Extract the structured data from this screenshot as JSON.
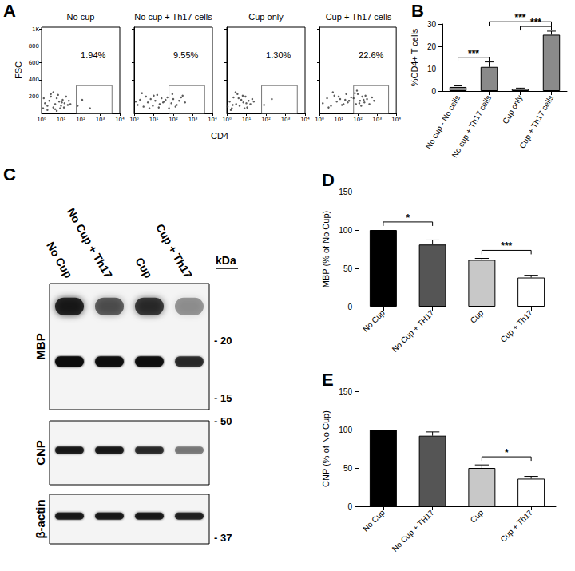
{
  "chart_data": [
    {
      "type": "scatter",
      "panel_label": "A",
      "title": "No cup",
      "log": "x",
      "color": "#333333",
      "xlabel": "CD4",
      "ylabel": "FSC",
      "tick_labels": true,
      "xlim": [
        1,
        10000
      ],
      "xticks": [
        {
          "value": 1,
          "label": "10⁰"
        },
        {
          "value": 10,
          "label": "10¹"
        },
        {
          "value": 100,
          "label": "10²"
        },
        {
          "value": 1000,
          "label": "10³"
        },
        {
          "value": 10000,
          "label": "10⁴"
        }
      ],
      "ylim": [
        0,
        1024
      ],
      "yticks": [
        200,
        400,
        600,
        800,
        {
          "value": 1000,
          "label": "1K"
        }
      ],
      "gate": {
        "x": [
          60,
          4000
        ],
        "y": [
          0,
          330
        ]
      },
      "annotations": [
        "1.94%"
      ],
      "x": [
        1.2,
        1.5,
        2,
        2.5,
        3,
        4,
        5,
        6,
        8,
        10,
        12,
        15,
        18,
        22,
        2,
        3,
        5,
        7,
        9,
        1.3,
        4,
        6,
        11,
        14,
        25,
        30,
        70,
        120,
        300
      ],
      "values": [
        60,
        120,
        90,
        150,
        200,
        70,
        110,
        180,
        140,
        90,
        160,
        120,
        200,
        100,
        40,
        230,
        50,
        220,
        60,
        180,
        250,
        30,
        130,
        70,
        150,
        110,
        90,
        160,
        60
      ]
    },
    {
      "type": "scatter",
      "title": "No cup + Th17 cells",
      "log": "x",
      "color": "#333333",
      "tick_labels": "x",
      "xlim": [
        1,
        10000
      ],
      "xticks": [
        {
          "value": 1,
          "label": "10⁰"
        },
        {
          "value": 10,
          "label": "10¹"
        },
        {
          "value": 100,
          "label": "10²"
        },
        {
          "value": 1000,
          "label": "10³"
        },
        {
          "value": 10000,
          "label": "10⁴"
        }
      ],
      "ylim": [
        0,
        1024
      ],
      "yticks": [
        200,
        400,
        600,
        800,
        {
          "value": 1000,
          "label": "1K"
        }
      ],
      "gate": {
        "x": [
          60,
          4000
        ],
        "y": [
          0,
          330
        ]
      },
      "annotations": [
        "9.55%"
      ],
      "x": [
        1.5,
        2,
        3,
        4,
        5,
        7,
        9,
        12,
        15,
        20,
        25,
        30,
        40,
        2.5,
        6,
        10,
        18,
        35,
        50,
        80,
        100,
        150,
        200,
        90,
        130,
        250,
        400,
        60,
        300,
        1.2
      ],
      "values": [
        100,
        160,
        80,
        200,
        130,
        170,
        90,
        150,
        220,
        110,
        180,
        130,
        160,
        240,
        60,
        210,
        70,
        140,
        190,
        120,
        170,
        100,
        150,
        230,
        80,
        190,
        130,
        60,
        210,
        140
      ]
    },
    {
      "type": "scatter",
      "title": "Cup only",
      "log": "x",
      "color": "#333333",
      "tick_labels": "x",
      "xlim": [
        1,
        10000
      ],
      "xticks": [
        {
          "value": 1,
          "label": "10⁰"
        },
        {
          "value": 10,
          "label": "10¹"
        },
        {
          "value": 100,
          "label": "10²"
        },
        {
          "value": 1000,
          "label": "10³"
        },
        {
          "value": 10000,
          "label": "10⁴"
        }
      ],
      "ylim": [
        0,
        1024
      ],
      "yticks": [
        200,
        400,
        600,
        800,
        {
          "value": 1000,
          "label": "1K"
        }
      ],
      "gate": {
        "x": [
          60,
          4000
        ],
        "y": [
          0,
          330
        ]
      },
      "annotations": [
        "1.30%"
      ],
      "x": [
        1.1,
        1.4,
        1.8,
        2.2,
        3,
        3.5,
        4.5,
        5.5,
        7,
        9,
        11,
        13,
        16,
        20,
        1.6,
        2.8,
        6.5,
        8,
        2,
        4,
        10,
        24,
        80,
        200
      ],
      "values": [
        80,
        140,
        60,
        190,
        110,
        230,
        90,
        160,
        130,
        200,
        70,
        150,
        110,
        170,
        40,
        250,
        210,
        60,
        100,
        180,
        120,
        140,
        100,
        170
      ]
    },
    {
      "type": "scatter",
      "title": "Cup + Th17 cells",
      "log": "x",
      "color": "#333333",
      "tick_labels": "x",
      "xlim": [
        1,
        10000
      ],
      "xticks": [
        {
          "value": 1,
          "label": "10⁰"
        },
        {
          "value": 10,
          "label": "10¹"
        },
        {
          "value": 100,
          "label": "10²"
        },
        {
          "value": 1000,
          "label": "10³"
        },
        {
          "value": 10000,
          "label": "10⁴"
        }
      ],
      "ylim": [
        0,
        1024
      ],
      "yticks": [
        200,
        400,
        600,
        800,
        {
          "value": 1000,
          "label": "1K"
        }
      ],
      "gate": {
        "x": [
          60,
          4000
        ],
        "y": [
          0,
          330
        ]
      },
      "annotations": [
        "22.6%"
      ],
      "x": [
        1.5,
        2.5,
        4,
        6,
        8,
        12,
        18,
        25,
        35,
        45,
        3,
        5,
        10,
        15,
        22,
        30,
        60,
        80,
        100,
        130,
        170,
        220,
        300,
        400,
        550,
        700,
        70,
        150,
        250,
        90,
        120,
        200
      ],
      "values": [
        120,
        180,
        90,
        210,
        140,
        170,
        110,
        230,
        150,
        190,
        70,
        250,
        200,
        100,
        160,
        130,
        180,
        110,
        230,
        150,
        200,
        130,
        170,
        110,
        190,
        150,
        240,
        90,
        210,
        270,
        120,
        160
      ]
    },
    {
      "type": "bar",
      "panel_label": "B",
      "ylabel": "%CD4+ T cells",
      "grid": false,
      "categories": [
        "No cup - No cells",
        "No cup + Th17 cells",
        "Cup only",
        "Cup + Th17 cells"
      ],
      "values": [
        1.8,
        10.8,
        1.0,
        25.2
      ],
      "errors": [
        0.5,
        2.2,
        0.3,
        1.6
      ],
      "color": "#8a8a8a",
      "ylim": [
        0,
        30
      ],
      "yticks": [
        0,
        10,
        20,
        30
      ],
      "significance": [
        {
          "between": [
            "No cup - No cells",
            "No cup + Th17 cells"
          ],
          "label": "***"
        },
        {
          "between": [
            "Cup only",
            "Cup + Th17 cells"
          ],
          "label": "***"
        },
        {
          "between": [
            "No cup + Th17 cells",
            "Cup + Th17 cells"
          ],
          "label": "***"
        }
      ]
    },
    {
      "type": "blot",
      "panel_label": "C",
      "unit_label": "kDa",
      "lanes": [
        "No Cup",
        "No Cup + Th17",
        "Cup",
        "Cup + Th17"
      ],
      "rows": [
        {
          "name": "MBP",
          "ylim": [
            14,
            25
          ],
          "yticks": [
            {
              "value": 20,
              "label": "- 20"
            },
            {
              "value": 15,
              "label": "- 15"
            }
          ],
          "bands": [
            {
              "kDa": 23,
              "intensity": [
                0.85,
                0.6,
                0.75,
                0.35
              ]
            },
            {
              "kDa": 18.2,
              "intensity": [
                1,
                0.95,
                0.95,
                0.75
              ]
            }
          ]
        },
        {
          "name": "CNP",
          "ylim": [
            40,
            50
          ],
          "yticks": [
            {
              "value": 50,
              "label": "- 50"
            }
          ],
          "bands": [
            {
              "kDa": 45.4,
              "intensity": [
                0.85,
                0.85,
                0.75,
                0.45
              ]
            }
          ]
        },
        {
          "name": "β-actin",
          "ylim": [
            36,
            44
          ],
          "yticks": [
            {
              "value": 37,
              "label": "- 37"
            }
          ],
          "bands": [
            {
              "kDa": 40.5,
              "intensity": [
                0.85,
                0.85,
                0.85,
                0.8
              ]
            }
          ]
        }
      ]
    },
    {
      "type": "bar",
      "panel_label": "D",
      "ylabel": "MBP (% of No Cup)",
      "grid": false,
      "categories": [
        "No Cup",
        "No Cup + TH17",
        "Cup",
        "Cup + Th17"
      ],
      "values": [
        100,
        81,
        61,
        38
      ],
      "errors": [
        0,
        6,
        2,
        3
      ],
      "colors": [
        "#000000",
        "#555555",
        "#c8c8c8",
        "#ffffff"
      ],
      "ylim": [
        0,
        150
      ],
      "yticks": [
        0,
        50,
        100,
        150
      ],
      "significance": [
        {
          "between": [
            "No Cup",
            "No Cup + TH17"
          ],
          "label": "*"
        },
        {
          "between": [
            "Cup",
            "Cup + Th17"
          ],
          "label": "***"
        }
      ]
    },
    {
      "type": "bar",
      "panel_label": "E",
      "ylabel": "CNP (% of No Cup)",
      "grid": false,
      "categories": [
        "No Cup",
        "No Cup + TH17",
        "Cup",
        "Cup + Th17"
      ],
      "values": [
        100,
        92,
        50,
        36
      ],
      "errors": [
        0,
        5,
        4,
        3
      ],
      "colors": [
        "#000000",
        "#555555",
        "#c8c8c8",
        "#ffffff"
      ],
      "ylim": [
        0,
        150
      ],
      "yticks": [
        0,
        50,
        100,
        150
      ],
      "significance": [
        {
          "between": [
            "Cup",
            "Cup + Th17"
          ],
          "label": "*"
        }
      ]
    }
  ]
}
